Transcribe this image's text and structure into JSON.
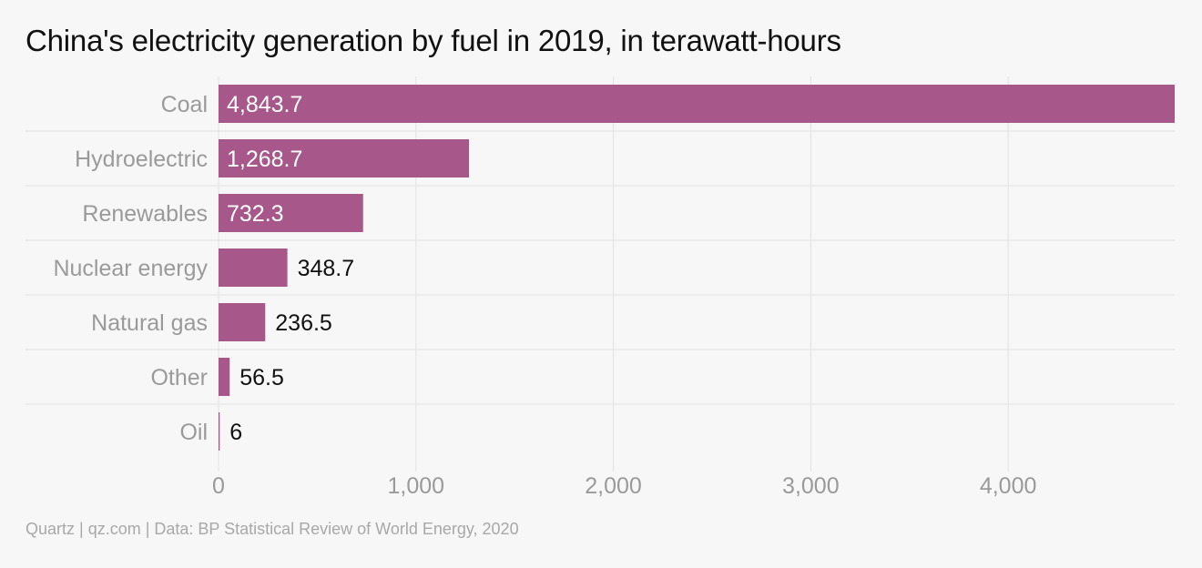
{
  "chart_data": {
    "type": "bar",
    "orientation": "horizontal",
    "title": "China's electricity generation by fuel in 2019, in terawatt-hours",
    "categories": [
      "Coal",
      "Hydroelectric",
      "Renewables",
      "Nuclear energy",
      "Natural gas",
      "Other",
      "Oil"
    ],
    "values": [
      4843.7,
      1268.7,
      732.3,
      348.7,
      236.5,
      56.5,
      6
    ],
    "value_labels": [
      "4,843.7",
      "1,268.7",
      "732.3",
      "348.7",
      "236.5",
      "56.5",
      "6"
    ],
    "xlim": [
      0,
      4843.7
    ],
    "x_ticks": [
      0,
      1000,
      2000,
      3000,
      4000
    ],
    "x_tick_labels": [
      "0",
      "1,000",
      "2,000",
      "3,000",
      "4,000"
    ],
    "xlabel": "",
    "ylabel": "",
    "grid": true,
    "colors": {
      "bar": "#a8578a",
      "label_inside": "#ffffff",
      "label_outside": "#111111",
      "axis_text": "#9a9a9a",
      "grid": "#e2e2e2"
    }
  },
  "source": "Quartz | qz.com | Data: BP Statistical Review of World Energy, 2020"
}
